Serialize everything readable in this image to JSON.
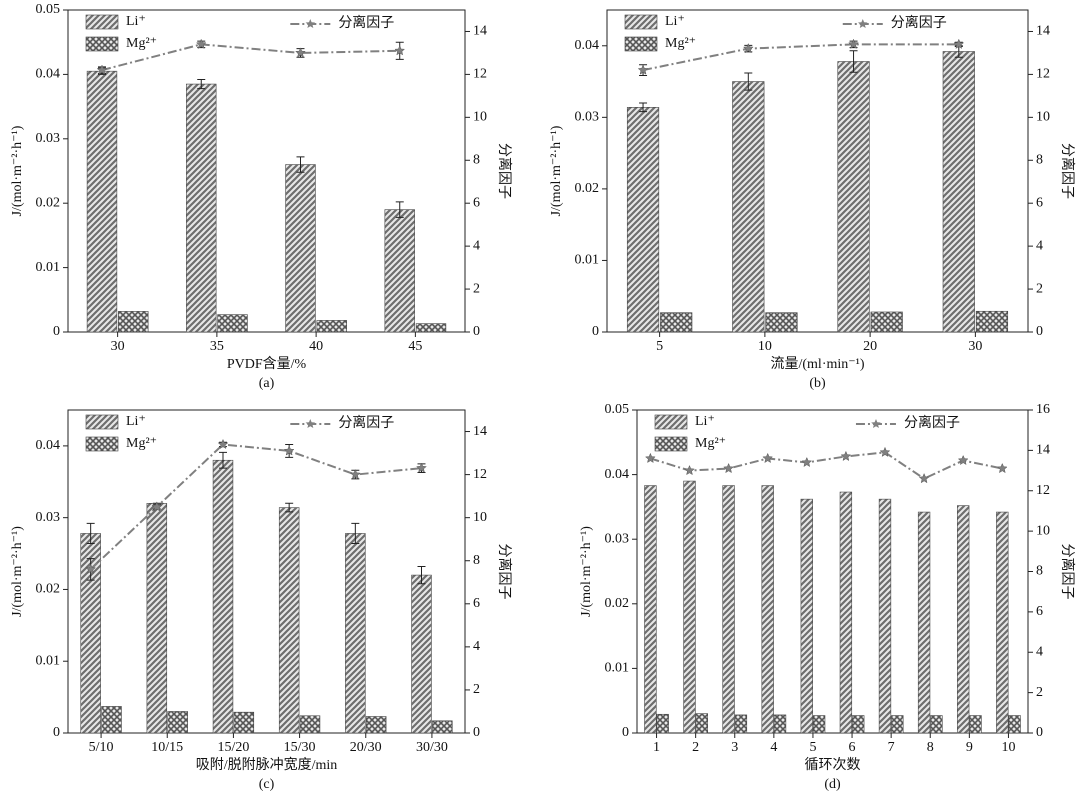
{
  "chart_data": [
    {
      "type": "bar",
      "xlabel": "PVDF含量/%",
      "caption": "(a)",
      "ylabel": "J/(mol·m⁻²·h⁻¹)",
      "y2label": "分离因子",
      "categories": [
        "30",
        "35",
        "40",
        "45"
      ],
      "ylim": [
        0,
        0.05
      ],
      "yticks": [
        0,
        0.01,
        0.02,
        0.03,
        0.04,
        0.05
      ],
      "y2lim": [
        0,
        15
      ],
      "y2ticks": [
        0,
        2,
        4,
        6,
        8,
        10,
        12,
        14
      ],
      "series": [
        {
          "name": "Li⁺",
          "color": "#6e6e6e",
          "hatch": "diagonal",
          "values": [
            0.0405,
            0.0385,
            0.026,
            0.019
          ],
          "errors": [
            0.0005,
            0.0007,
            0.0012,
            0.0012
          ]
        },
        {
          "name": "Mg²⁺",
          "color": "#555555",
          "hatch": "cross",
          "values": [
            0.0032,
            0.0027,
            0.0018,
            0.0013
          ]
        },
        {
          "name": "分离因子",
          "type": "line",
          "axis": "y2",
          "color": "#808080",
          "values": [
            12.2,
            13.4,
            13.0,
            13.1
          ],
          "errors": [
            0.15,
            0.15,
            0.2,
            0.4
          ]
        }
      ]
    },
    {
      "type": "bar",
      "xlabel": "流量/(ml·min⁻¹)",
      "caption": "(b)",
      "ylabel": "J/(mol·m⁻²·h⁻¹)",
      "y2label": "分离因子",
      "categories": [
        "5",
        "10",
        "20",
        "30"
      ],
      "ylim": [
        0,
        0.045
      ],
      "yticks": [
        0,
        0.01,
        0.02,
        0.03,
        0.04
      ],
      "y2lim": [
        0,
        15
      ],
      "y2ticks": [
        0,
        2,
        4,
        6,
        8,
        10,
        12,
        14
      ],
      "series": [
        {
          "name": "Li⁺",
          "color": "#6e6e6e",
          "hatch": "diagonal",
          "values": [
            0.0314,
            0.035,
            0.0378,
            0.0392
          ],
          "errors": [
            0.0006,
            0.0012,
            0.0015,
            0.0008
          ]
        },
        {
          "name": "Mg²⁺",
          "color": "#555555",
          "hatch": "cross",
          "values": [
            0.0027,
            0.0027,
            0.0028,
            0.0029
          ]
        },
        {
          "name": "分离因子",
          "type": "line",
          "axis": "y2",
          "color": "#808080",
          "values": [
            12.2,
            13.2,
            13.4,
            13.4
          ],
          "errors": [
            0.25,
            0.15,
            0.15,
            0.1
          ]
        }
      ]
    },
    {
      "type": "bar",
      "xlabel": "吸附/脱附脉冲宽度/min",
      "caption": "(c)",
      "ylabel": "J/(mol·m⁻²·h⁻¹)",
      "y2label": "分离因子",
      "categories": [
        "5/10",
        "10/15",
        "15/20",
        "15/30",
        "20/30",
        "30/30"
      ],
      "ylim": [
        0,
        0.045
      ],
      "yticks": [
        0,
        0.01,
        0.02,
        0.03,
        0.04
      ],
      "y2lim": [
        0,
        15
      ],
      "y2ticks": [
        0,
        2,
        4,
        6,
        8,
        10,
        12,
        14
      ],
      "series": [
        {
          "name": "Li⁺",
          "color": "#6e6e6e",
          "hatch": "diagonal",
          "values": [
            0.0278,
            0.032,
            0.038,
            0.0314,
            0.0278,
            0.022
          ],
          "errors": [
            0.0014,
            0,
            0.0011,
            0.0006,
            0.0014,
            0.0012
          ]
        },
        {
          "name": "Mg²⁺",
          "color": "#555555",
          "hatch": "cross",
          "values": [
            0.0037,
            0.003,
            0.0029,
            0.0024,
            0.0023,
            0.0017
          ]
        },
        {
          "name": "分离因子",
          "type": "line",
          "axis": "y2",
          "color": "#808080",
          "values": [
            7.6,
            10.5,
            13.4,
            13.1,
            12.0,
            12.3
          ],
          "errors": [
            0.5,
            0.1,
            0.1,
            0.3,
            0.2,
            0.2
          ]
        }
      ]
    },
    {
      "type": "bar",
      "xlabel": "循环次数",
      "caption": "(d)",
      "ylabel": "J/(mol·m⁻²·h⁻¹)",
      "y2label": "分离因子",
      "categories": [
        "1",
        "2",
        "3",
        "4",
        "5",
        "6",
        "7",
        "8",
        "9",
        "10"
      ],
      "ylim": [
        0,
        0.05
      ],
      "yticks": [
        0,
        0.01,
        0.02,
        0.03,
        0.04,
        0.05
      ],
      "y2lim": [
        0,
        16
      ],
      "y2ticks": [
        0,
        2,
        4,
        6,
        8,
        10,
        12,
        14,
        16
      ],
      "series": [
        {
          "name": "Li⁺",
          "color": "#6e6e6e",
          "hatch": "diagonal",
          "values": [
            0.0383,
            0.039,
            0.0383,
            0.0383,
            0.0362,
            0.0373,
            0.0362,
            0.0342,
            0.0352,
            0.0342
          ]
        },
        {
          "name": "Mg²⁺",
          "color": "#555555",
          "hatch": "cross",
          "values": [
            0.0029,
            0.003,
            0.0028,
            0.0028,
            0.0027,
            0.0027,
            0.0027,
            0.0027,
            0.0027,
            0.0027
          ]
        },
        {
          "name": "分离因子",
          "type": "line",
          "axis": "y2",
          "color": "#808080",
          "values": [
            13.6,
            13.0,
            13.1,
            13.6,
            13.4,
            13.7,
            13.9,
            12.6,
            13.5,
            13.1
          ]
        }
      ]
    }
  ]
}
